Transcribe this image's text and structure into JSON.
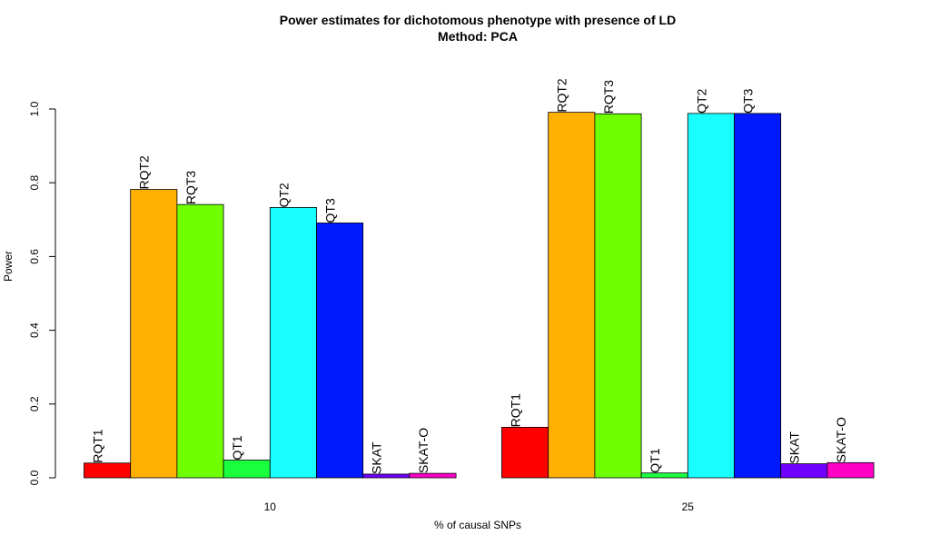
{
  "chart_data": {
    "type": "bar",
    "title": "Power estimates for dichotomous phenotype with presence of LD",
    "subtitle": "Method: PCA",
    "xlabel": "% of causal SNPs",
    "ylabel": "Power",
    "ylim": [
      0,
      1
    ],
    "yticks": [
      "0.0",
      "0.2",
      "0.4",
      "0.6",
      "0.8",
      "1.0"
    ],
    "categories": [
      "10",
      "25"
    ],
    "series": [
      {
        "name": "RQT1",
        "color": "#FF0000",
        "values": [
          0.04,
          0.137
        ]
      },
      {
        "name": "RQT2",
        "color": "#FFB000",
        "values": [
          0.782,
          0.991
        ]
      },
      {
        "name": "RQT3",
        "color": "#70FF00",
        "values": [
          0.741,
          0.987
        ]
      },
      {
        "name": "QT1",
        "color": "#19FF3E",
        "values": [
          0.048,
          0.013
        ]
      },
      {
        "name": "QT2",
        "color": "#19FFFF",
        "values": [
          0.733,
          0.988
        ]
      },
      {
        "name": "QT3",
        "color": "#0019FF",
        "values": [
          0.691,
          0.988
        ]
      },
      {
        "name": "SKAT",
        "color": "#6F00FF",
        "values": [
          0.01,
          0.038
        ]
      },
      {
        "name": "SKAT-O",
        "color": "#FF00C7",
        "values": [
          0.012,
          0.041
        ]
      }
    ],
    "grid": false,
    "legend": "none"
  }
}
